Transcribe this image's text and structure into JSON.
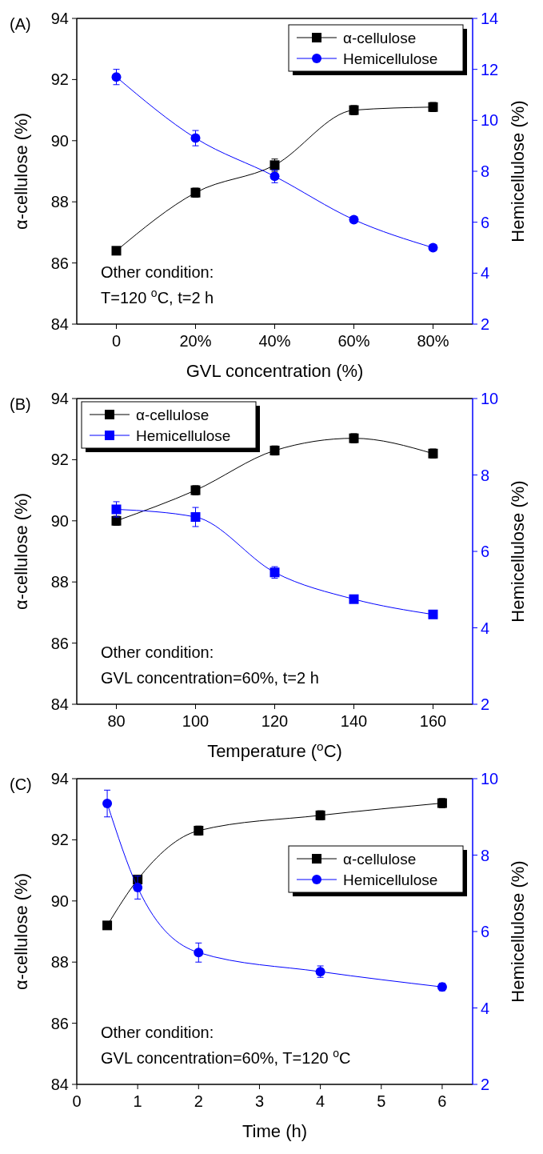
{
  "chart_data": [
    {
      "type": "line",
      "xlabel": "GVL concentration (%)",
      "ylabel": "α-cellulose (%)",
      "y2label": "Hemicellulose (%)",
      "x": [
        0,
        20,
        40,
        60,
        80
      ],
      "xlim": [
        -10,
        90
      ],
      "xticks": [
        {
          "value": 0,
          "label": "0"
        },
        {
          "value": 20,
          "label": "20%"
        },
        {
          "value": 40,
          "label": "40%"
        },
        {
          "value": 60,
          "label": "60%"
        },
        {
          "value": 80,
          "label": "80%"
        }
      ],
      "ylim": [
        84,
        94
      ],
      "yticks": [
        84,
        86,
        88,
        90,
        92,
        94
      ],
      "y2lim": [
        2,
        14
      ],
      "y2ticks": [
        2,
        4,
        6,
        8,
        10,
        12,
        14
      ],
      "series": [
        {
          "name": "α-cellulose",
          "color": "#000000",
          "marker": "square",
          "values": [
            86.4,
            88.3,
            89.2,
            91.0,
            91.1
          ],
          "errors": [
            0.1,
            0.15,
            0.2,
            0.15,
            0.15
          ]
        },
        {
          "name": "Hemicellulose",
          "color": "#0000ff",
          "marker": "circle",
          "axis": "y2",
          "values": [
            11.7,
            9.3,
            7.8,
            6.1,
            5.0
          ],
          "errors": [
            0.3,
            0.3,
            0.25,
            0.1,
            0.1
          ]
        }
      ],
      "legend": "top right",
      "grid": false,
      "annotations": [
        "(A)",
        "Other condition:",
        "T=120 $^{o}$C, t=2 h"
      ]
    },
    {
      "type": "line",
      "xlabel": "Temperature ($^{o}$C)",
      "ylabel": "α-cellulose (%)",
      "y2label": "Hemicellulose (%)",
      "x": [
        80,
        100,
        120,
        140,
        160
      ],
      "xlim": [
        70,
        170
      ],
      "xticks": [
        80,
        100,
        120,
        140,
        160
      ],
      "ylim": [
        84,
        94
      ],
      "yticks": [
        84,
        86,
        88,
        90,
        92,
        94
      ],
      "y2lim": [
        2,
        10
      ],
      "y2ticks": [
        2,
        4,
        6,
        8,
        10
      ],
      "series": [
        {
          "name": "α-cellulose",
          "color": "#000000",
          "marker": "square",
          "values": [
            90.0,
            91.0,
            92.3,
            92.7,
            92.2
          ],
          "errors": [
            0.15,
            0.15,
            0.15,
            0.15,
            0.15
          ]
        },
        {
          "name": "Hemicellulose",
          "color": "#0000ff",
          "marker": "square",
          "axis": "y2",
          "values": [
            7.1,
            6.9,
            5.45,
            4.75,
            4.35
          ],
          "errors": [
            0.2,
            0.25,
            0.15,
            0.1,
            0.05
          ]
        }
      ],
      "legend": "top left",
      "grid": false,
      "annotations": [
        "(B)",
        "Other condition:",
        "GVL concentration=60%, t=2 h"
      ]
    },
    {
      "type": "line",
      "xlabel": "Time (h)",
      "ylabel": "α-cellulose (%)",
      "y2label": "Hemicellulose (%)",
      "x": [
        0.5,
        1,
        2,
        4,
        6
      ],
      "xlim": [
        0,
        6.5
      ],
      "xticks": [
        0,
        1,
        2,
        3,
        4,
        5,
        6
      ],
      "ylim": [
        84,
        94
      ],
      "yticks": [
        84,
        86,
        88,
        90,
        92,
        94
      ],
      "y2lim": [
        2,
        10
      ],
      "y2ticks": [
        2,
        4,
        6,
        8,
        10
      ],
      "series": [
        {
          "name": "α-cellulose",
          "color": "#000000",
          "marker": "square",
          "values": [
            89.2,
            90.7,
            92.3,
            92.8,
            93.2
          ],
          "errors": [
            0.1,
            0.1,
            0.15,
            0.15,
            0.15
          ]
        },
        {
          "name": "Hemicellulose",
          "color": "#0000ff",
          "marker": "circle",
          "axis": "y2",
          "values": [
            9.35,
            7.15,
            5.45,
            4.95,
            4.55
          ],
          "errors": [
            0.35,
            0.3,
            0.25,
            0.15,
            0.1
          ]
        }
      ],
      "legend": "right",
      "grid": false,
      "annotations": [
        "(C)",
        "Other condition:",
        "GVL concentration=60%, T=120 $^{o}$C"
      ]
    }
  ]
}
